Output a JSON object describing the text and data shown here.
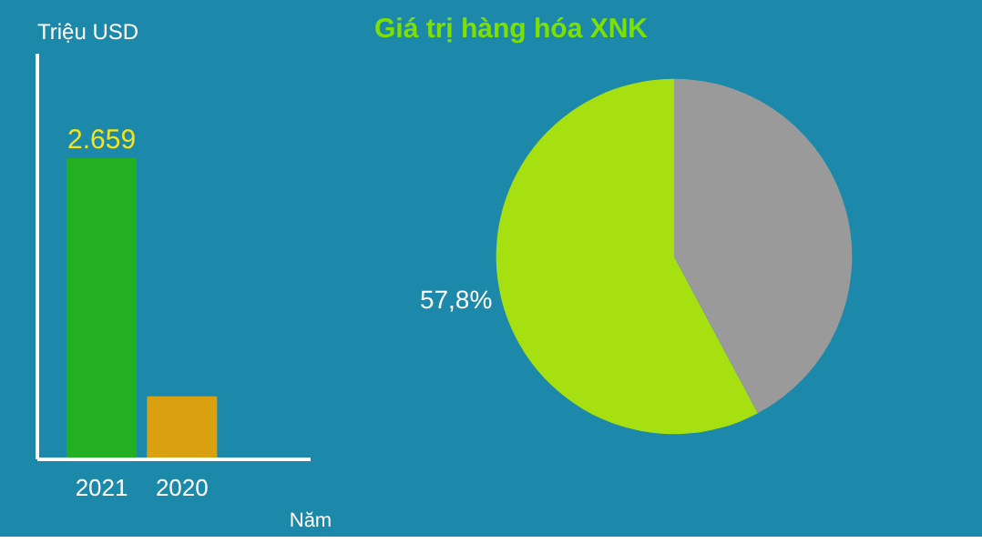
{
  "chart_data": [
    {
      "type": "bar",
      "ylabel": "Triệu USD",
      "xlabel": "Năm",
      "categories": [
        "2021",
        "2020"
      ],
      "values": [
        2659,
        550
      ],
      "colors": [
        "#22b022",
        "#d9a010"
      ],
      "value_labels": [
        "2.659",
        null
      ],
      "grid": false,
      "tick_labels": "x"
    },
    {
      "type": "pie",
      "categories": [
        null,
        null
      ],
      "values": [
        57.8,
        42.2
      ],
      "colors": [
        "#a6e010",
        "#9a9a9a"
      ],
      "value_labels": [
        "57,8%",
        null
      ],
      "title": "Giá trị hàng hóa XNK"
    }
  ]
}
